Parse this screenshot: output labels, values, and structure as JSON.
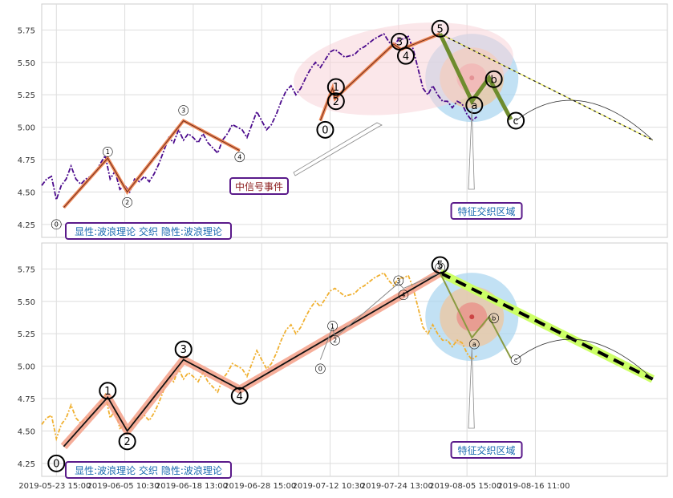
{
  "chart_data": [
    {
      "type": "line",
      "panel": "top",
      "ylim": [
        4.15,
        5.95
      ],
      "y_ticks": [
        "4.25",
        "4.50",
        "4.75",
        "5.00",
        "5.25",
        "5.50",
        "5.75"
      ],
      "x_ticks": [
        "2019-05-23 15:00",
        "2019-06-05 10:30",
        "2019-06-18 13:00",
        "2019-06-28 15:00",
        "2019-07-12 10:30",
        "2019-07-24 13:00",
        "2019-08-05 15:00",
        "2019-08-16 11:00"
      ],
      "grid": true,
      "price_color": "#4b0a8c",
      "wave_color": "#f08a5a",
      "correction_color": "#6e8c2e",
      "projection_color": "#ffff66",
      "price": [
        [
          0,
          4.55
        ],
        [
          1,
          4.6
        ],
        [
          2,
          4.62
        ],
        [
          3,
          4.44
        ],
        [
          4,
          4.55
        ],
        [
          5,
          4.6
        ],
        [
          6,
          4.7
        ],
        [
          7,
          4.6
        ],
        [
          8,
          4.56
        ],
        [
          9,
          4.6
        ],
        [
          10,
          4.62
        ],
        [
          11,
          4.65
        ],
        [
          12,
          4.72
        ],
        [
          13,
          4.78
        ],
        [
          14,
          4.6
        ],
        [
          15,
          4.66
        ],
        [
          16,
          4.52
        ],
        [
          17,
          4.55
        ],
        [
          18,
          4.5
        ],
        [
          19,
          4.6
        ],
        [
          20,
          4.58
        ],
        [
          21,
          4.62
        ],
        [
          22,
          4.58
        ],
        [
          23,
          4.64
        ],
        [
          24,
          4.72
        ],
        [
          25,
          4.82
        ],
        [
          26,
          4.92
        ],
        [
          27,
          4.88
        ],
        [
          28,
          4.98
        ],
        [
          29,
          4.9
        ],
        [
          30,
          4.95
        ],
        [
          31,
          4.92
        ],
        [
          32,
          4.88
        ],
        [
          33,
          4.95
        ],
        [
          34,
          4.88
        ],
        [
          35,
          4.84
        ],
        [
          36,
          4.8
        ],
        [
          37,
          4.9
        ],
        [
          38,
          4.95
        ],
        [
          39,
          5.02
        ],
        [
          40,
          5.0
        ],
        [
          41,
          4.98
        ],
        [
          42,
          4.92
        ],
        [
          43,
          5.02
        ],
        [
          44,
          5.12
        ],
        [
          45,
          5.05
        ],
        [
          46,
          4.98
        ],
        [
          47,
          5.02
        ],
        [
          48,
          5.1
        ],
        [
          49,
          5.2
        ],
        [
          50,
          5.28
        ],
        [
          51,
          5.32
        ],
        [
          52,
          5.25
        ],
        [
          53,
          5.3
        ],
        [
          54,
          5.38
        ],
        [
          55,
          5.45
        ],
        [
          56,
          5.5
        ],
        [
          57,
          5.46
        ],
        [
          58,
          5.52
        ],
        [
          59,
          5.58
        ],
        [
          60,
          5.6
        ],
        [
          61,
          5.57
        ],
        [
          62,
          5.54
        ],
        [
          63,
          5.55
        ],
        [
          64,
          5.56
        ],
        [
          65,
          5.6
        ],
        [
          66,
          5.62
        ],
        [
          67,
          5.65
        ],
        [
          68,
          5.68
        ],
        [
          69,
          5.7
        ],
        [
          70,
          5.72
        ],
        [
          71,
          5.66
        ],
        [
          72,
          5.62
        ],
        [
          73,
          5.68
        ],
        [
          74,
          5.68
        ],
        [
          75,
          5.7
        ],
        [
          76,
          5.6
        ],
        [
          77,
          5.45
        ],
        [
          78,
          5.3
        ],
        [
          79,
          5.25
        ],
        [
          80,
          5.32
        ],
        [
          81,
          5.25
        ],
        [
          82,
          5.2
        ],
        [
          83,
          5.2
        ],
        [
          84,
          5.15
        ],
        [
          85,
          5.2
        ],
        [
          86,
          5.18
        ],
        [
          87,
          5.1
        ],
        [
          88,
          5.05
        ],
        [
          89,
          5.08
        ]
      ],
      "waves_small": [
        {
          "x": 4.5,
          "y": 4.38,
          "label": "0"
        },
        {
          "x": 13.5,
          "y": 4.76,
          "label": "1"
        },
        {
          "x": 17.5,
          "y": 4.5,
          "label": "2"
        },
        {
          "x": 29,
          "y": 5.05,
          "label": "3"
        },
        {
          "x": 40.5,
          "y": 4.82,
          "label": "4"
        }
      ],
      "wave_labels_small": [
        {
          "x": 3,
          "y": 4.25,
          "label": "0"
        },
        {
          "x": 13.5,
          "y": 4.81,
          "label": "1"
        },
        {
          "x": 17.5,
          "y": 4.42,
          "label": "2"
        },
        {
          "x": 29,
          "y": 5.13,
          "label": "3"
        },
        {
          "x": 40.5,
          "y": 4.77,
          "label": "4"
        }
      ],
      "waves_big": [
        {
          "x": 57,
          "y": 5.05,
          "label": "0"
        },
        {
          "x": 59.5,
          "y": 5.3,
          "label": "1"
        },
        {
          "x": 60,
          "y": 5.22,
          "label": "2"
        },
        {
          "x": 72,
          "y": 5.64,
          "label": "3"
        },
        {
          "x": 73.5,
          "y": 5.6,
          "label": "4"
        }
      ],
      "wave_labels_big": [
        {
          "x": 58,
          "y": 4.98,
          "label": "0"
        },
        {
          "x": 60.2,
          "y": 5.31,
          "label": "1"
        },
        {
          "x": 60.2,
          "y": 5.2,
          "label": "2"
        },
        {
          "x": 73.2,
          "y": 5.66,
          "label": "3"
        },
        {
          "x": 74.5,
          "y": 5.55,
          "label": "4"
        },
        {
          "x": 81.5,
          "y": 5.76,
          "label": "5"
        }
      ],
      "correction": [
        {
          "x": 81.5,
          "y": 5.72,
          "label": "5"
        },
        {
          "x": 88,
          "y": 5.2,
          "label": "a"
        },
        {
          "x": 91.5,
          "y": 5.38,
          "label": "b"
        },
        {
          "x": 96,
          "y": 5.06,
          "label": "c"
        }
      ],
      "correction_labels": [
        {
          "x": 88.5,
          "y": 5.17,
          "label": "a"
        },
        {
          "x": 92.5,
          "y": 5.37,
          "label": "b"
        },
        {
          "x": 97,
          "y": 5.05,
          "label": "c"
        }
      ],
      "projection": {
        "from": [
          81.5,
          5.72
        ],
        "to": [
          125,
          4.9
        ]
      },
      "arc": {
        "from": [
          97,
          5.05
        ],
        "peak": [
          110,
          5.18
        ],
        "to": [
          125,
          4.9
        ]
      },
      "annotations": {
        "signal": "中信号事件",
        "zone": "特征交织区域",
        "legend": "显性:波浪理论 交织 隐性:波浪理论"
      }
    },
    {
      "type": "line",
      "panel": "bottom",
      "ylim": [
        4.15,
        5.95
      ],
      "y_ticks": [
        "4.25",
        "4.50",
        "4.75",
        "5.00",
        "5.25",
        "5.50",
        "5.75"
      ],
      "x_ticks": [
        "2019-05-23 15:00",
        "2019-06-05 10:30",
        "2019-06-18 13:00",
        "2019-06-28 15:00",
        "2019-07-12 10:30",
        "2019-07-24 13:00",
        "2019-08-05 15:00",
        "2019-08-16 11:00"
      ],
      "grid": true,
      "price_color": "#f0b030",
      "wave_color": "#111111",
      "correction_color": "#8a9a40",
      "projection_color": "#ccff66",
      "price": [
        [
          0,
          4.55
        ],
        [
          1,
          4.6
        ],
        [
          2,
          4.62
        ],
        [
          3,
          4.44
        ],
        [
          4,
          4.55
        ],
        [
          5,
          4.6
        ],
        [
          6,
          4.7
        ],
        [
          7,
          4.6
        ],
        [
          8,
          4.56
        ],
        [
          9,
          4.6
        ],
        [
          10,
          4.62
        ],
        [
          11,
          4.65
        ],
        [
          12,
          4.72
        ],
        [
          13,
          4.78
        ],
        [
          14,
          4.6
        ],
        [
          15,
          4.66
        ],
        [
          16,
          4.52
        ],
        [
          17,
          4.55
        ],
        [
          18,
          4.5
        ],
        [
          19,
          4.6
        ],
        [
          20,
          4.58
        ],
        [
          21,
          4.62
        ],
        [
          22,
          4.58
        ],
        [
          23,
          4.64
        ],
        [
          24,
          4.72
        ],
        [
          25,
          4.82
        ],
        [
          26,
          4.92
        ],
        [
          27,
          4.88
        ],
        [
          28,
          4.98
        ],
        [
          29,
          4.9
        ],
        [
          30,
          4.95
        ],
        [
          31,
          4.92
        ],
        [
          32,
          4.88
        ],
        [
          33,
          4.95
        ],
        [
          34,
          4.88
        ],
        [
          35,
          4.84
        ],
        [
          36,
          4.8
        ],
        [
          37,
          4.9
        ],
        [
          38,
          4.95
        ],
        [
          39,
          5.02
        ],
        [
          40,
          5.0
        ],
        [
          41,
          4.98
        ],
        [
          42,
          4.92
        ],
        [
          43,
          5.02
        ],
        [
          44,
          5.12
        ],
        [
          45,
          5.05
        ],
        [
          46,
          4.98
        ],
        [
          47,
          5.02
        ],
        [
          48,
          5.1
        ],
        [
          49,
          5.2
        ],
        [
          50,
          5.28
        ],
        [
          51,
          5.32
        ],
        [
          52,
          5.25
        ],
        [
          53,
          5.3
        ],
        [
          54,
          5.38
        ],
        [
          55,
          5.45
        ],
        [
          56,
          5.5
        ],
        [
          57,
          5.46
        ],
        [
          58,
          5.52
        ],
        [
          59,
          5.58
        ],
        [
          60,
          5.6
        ],
        [
          61,
          5.57
        ],
        [
          62,
          5.54
        ],
        [
          63,
          5.55
        ],
        [
          64,
          5.56
        ],
        [
          65,
          5.6
        ],
        [
          66,
          5.62
        ],
        [
          67,
          5.65
        ],
        [
          68,
          5.68
        ],
        [
          69,
          5.7
        ],
        [
          70,
          5.72
        ],
        [
          71,
          5.66
        ],
        [
          72,
          5.62
        ],
        [
          73,
          5.68
        ],
        [
          74,
          5.68
        ],
        [
          75,
          5.7
        ],
        [
          76,
          5.6
        ],
        [
          77,
          5.45
        ],
        [
          78,
          5.3
        ],
        [
          79,
          5.25
        ],
        [
          80,
          5.32
        ],
        [
          81,
          5.25
        ],
        [
          82,
          5.2
        ],
        [
          83,
          5.2
        ],
        [
          84,
          5.15
        ],
        [
          85,
          5.2
        ],
        [
          86,
          5.18
        ],
        [
          87,
          5.1
        ],
        [
          88,
          5.05
        ],
        [
          89,
          5.08
        ]
      ],
      "waves_big": [
        {
          "x": 4.5,
          "y": 4.38,
          "label": "0"
        },
        {
          "x": 13.5,
          "y": 4.76,
          "label": "1"
        },
        {
          "x": 17.5,
          "y": 4.5,
          "label": "2"
        },
        {
          "x": 29,
          "y": 5.05,
          "label": "3"
        },
        {
          "x": 40.5,
          "y": 4.82,
          "label": "4"
        },
        {
          "x": 81.5,
          "y": 5.72,
          "label": "5"
        }
      ],
      "wave_labels_big": [
        {
          "x": 3,
          "y": 4.25,
          "label": "0"
        },
        {
          "x": 13.5,
          "y": 4.81,
          "label": "1"
        },
        {
          "x": 17.5,
          "y": 4.42,
          "label": "2"
        },
        {
          "x": 29,
          "y": 5.13,
          "label": "3"
        },
        {
          "x": 40.5,
          "y": 4.77,
          "label": "4"
        },
        {
          "x": 81.5,
          "y": 5.78,
          "label": "5"
        }
      ],
      "wave_labels_small": [
        {
          "x": 57,
          "y": 4.98,
          "label": "0"
        },
        {
          "x": 59.5,
          "y": 5.31,
          "label": "1"
        },
        {
          "x": 60,
          "y": 5.2,
          "label": "2"
        },
        {
          "x": 73,
          "y": 5.66,
          "label": "3"
        },
        {
          "x": 74,
          "y": 5.55,
          "label": "4"
        },
        {
          "x": 81.5,
          "y": 5.76,
          "label": "5"
        }
      ],
      "correction": [
        {
          "x": 81.5,
          "y": 5.72,
          "label": "5"
        },
        {
          "x": 88,
          "y": 5.22,
          "label": "a"
        },
        {
          "x": 91.5,
          "y": 5.38,
          "label": "b"
        },
        {
          "x": 96,
          "y": 5.06,
          "label": "c"
        }
      ],
      "correction_labels": [
        {
          "x": 88.5,
          "y": 5.17,
          "label": "a"
        },
        {
          "x": 92.5,
          "y": 5.37,
          "label": "b"
        },
        {
          "x": 97,
          "y": 5.05,
          "label": "c"
        }
      ],
      "projection": {
        "from": [
          81.5,
          5.72
        ],
        "to": [
          125,
          4.9
        ]
      },
      "arc": {
        "from": [
          97,
          5.05
        ],
        "peak": [
          110,
          5.18
        ],
        "to": [
          125,
          4.9
        ]
      },
      "annotations": {
        "zone": "特征交织区域",
        "legend": "显性:波浪理论 交织 隐性:波浪理论"
      }
    }
  ]
}
